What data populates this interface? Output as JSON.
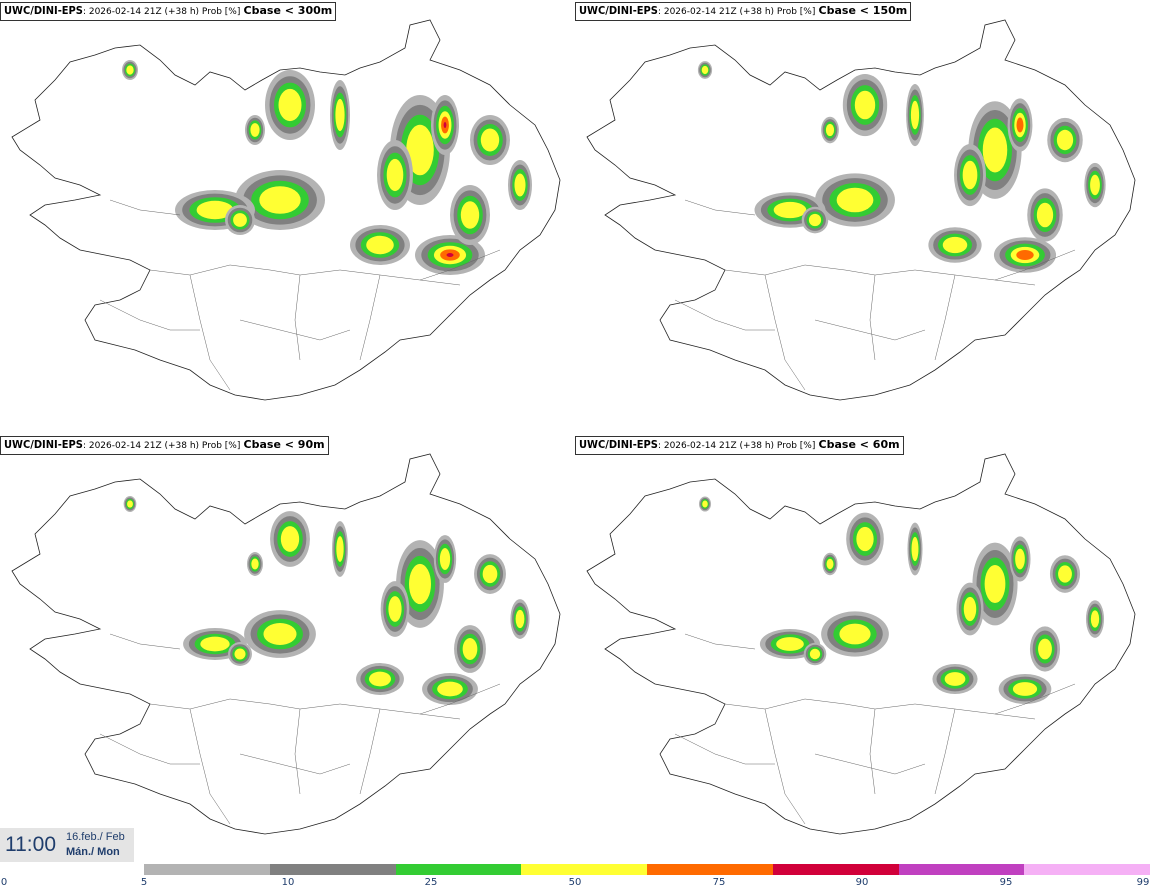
{
  "panels": [
    {
      "model": "UWC/DINI-EPS",
      "run": ": 2026-02-14 21Z (+38 h) Prob [%]",
      "param": "Cbase < 300m",
      "level": 1.0
    },
    {
      "model": "UWC/DINI-EPS",
      "run": ": 2026-02-14 21Z (+38 h) Prob [%]",
      "param": "Cbase < 150m",
      "level": 0.75
    },
    {
      "model": "UWC/DINI-EPS",
      "run": ": 2026-02-14 21Z (+38 h) Prob [%]",
      "param": "Cbase < 90m",
      "level": 0.55
    },
    {
      "model": "UWC/DINI-EPS",
      "run": ": 2026-02-14 21Z (+38 h) Prob [%]",
      "param": "Cbase < 60m",
      "level": 0.45
    }
  ],
  "time": {
    "clock": "11:00",
    "date": "16.feb./ Feb",
    "day": "Mán./ Mon"
  },
  "colorbar": {
    "labels": [
      "0",
      "5",
      "10",
      "25",
      "50",
      "75",
      "90",
      "95",
      "99"
    ],
    "colors": [
      "#b3b3b3",
      "#808080",
      "#33cc33",
      "#ffff33",
      "#ff6a00",
      "#d1003a",
      "#c040c0",
      "#f5b0f5"
    ]
  }
}
